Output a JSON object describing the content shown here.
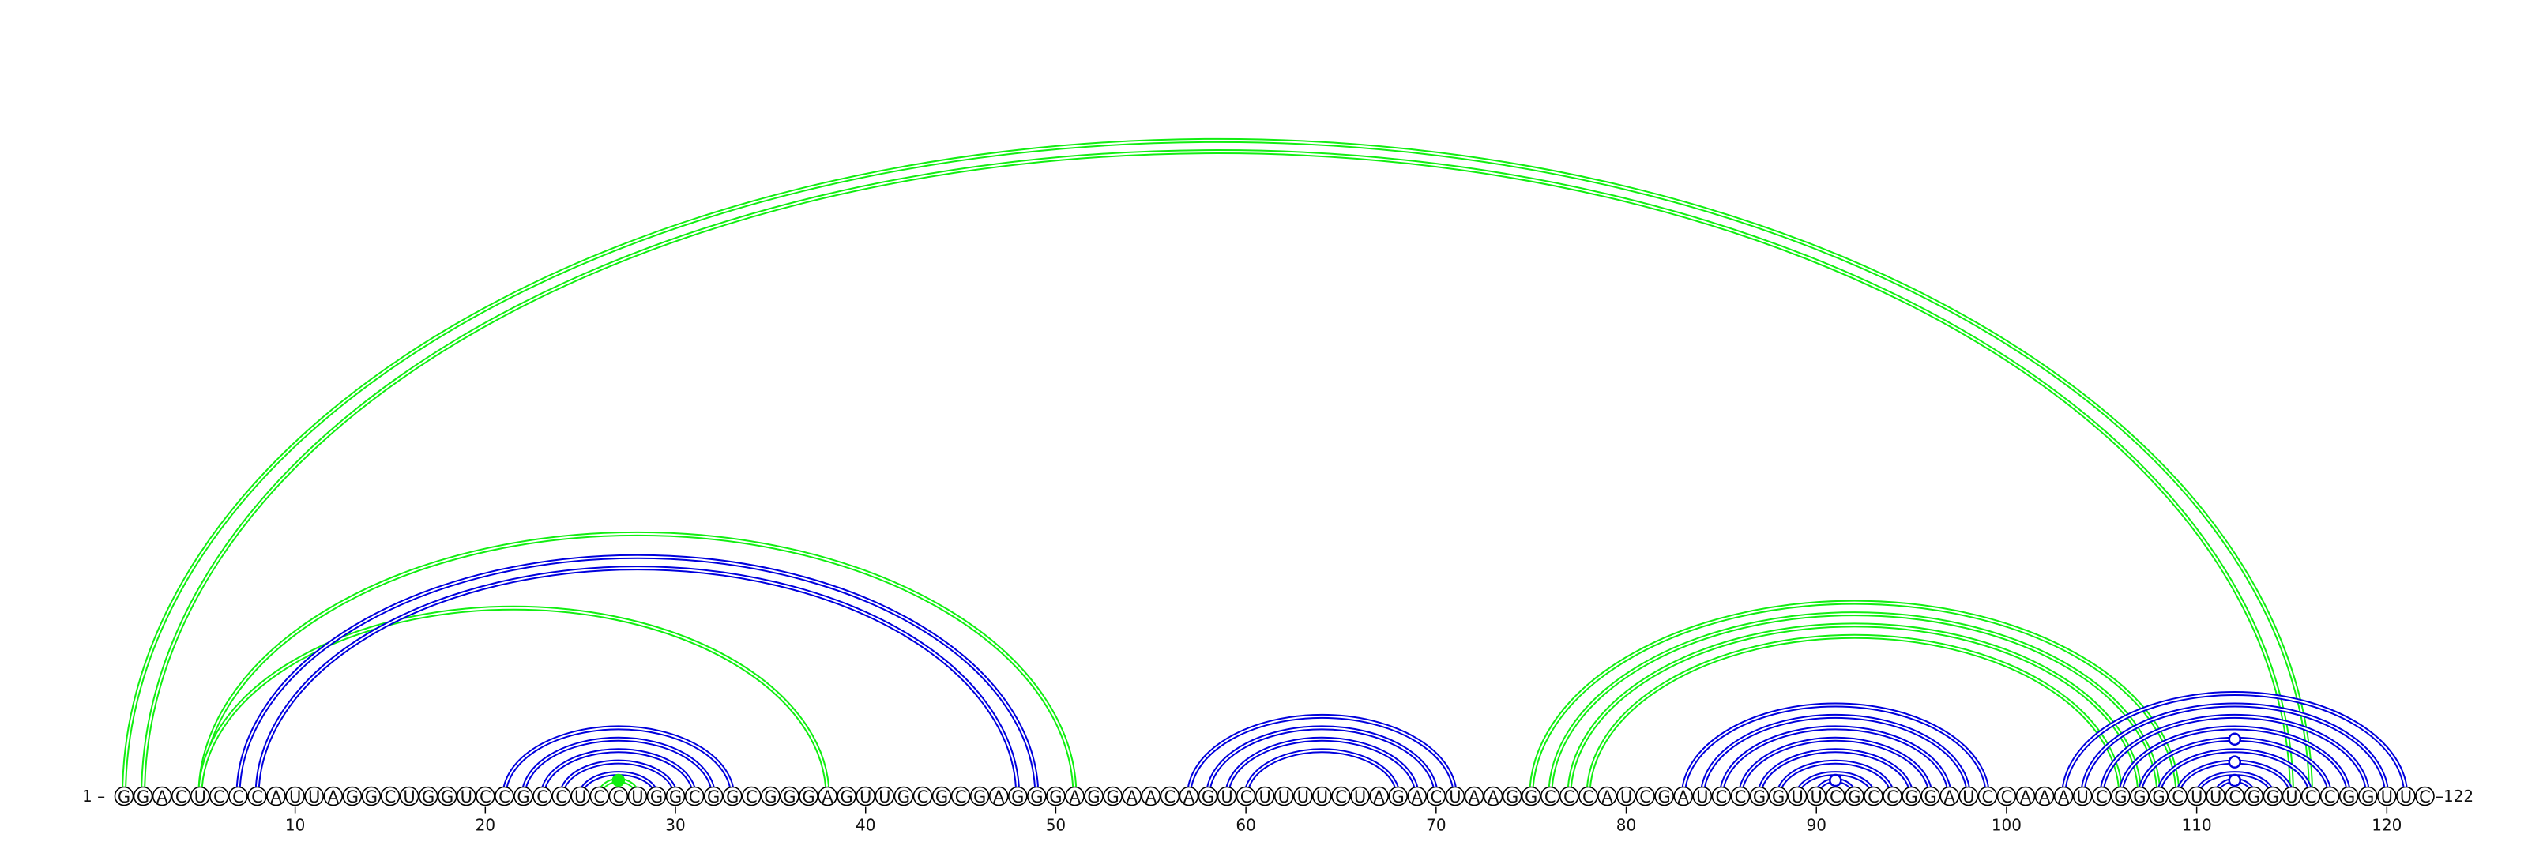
{
  "sequence": "GGACUCCCAUUAGGCUGGUCCGCCUCCUGGCGGCGGGAGUUGCGCGAGGGAGGAACAGUCUUUUCUAGACUAAGGCCCAUCGAUCCGGUUCGCCGGAUCCAAAUCGGGCUUCGGUCCGGUUC",
  "start_label": "1 –",
  "end_label": "–122",
  "ticks": [
    10,
    20,
    30,
    40,
    50,
    60,
    70,
    80,
    90,
    100,
    110,
    120
  ],
  "colors": {
    "blue": "#0000dd",
    "green": "#11ee11",
    "outline": "#000000"
  },
  "arcs": [
    {
      "i": 1,
      "j": 116,
      "color": "green"
    },
    {
      "i": 2,
      "j": 115,
      "color": "green"
    },
    {
      "i": 5,
      "j": 51,
      "color": "green"
    },
    {
      "i": 5,
      "j": 38,
      "color": "green"
    },
    {
      "i": 7,
      "j": 49,
      "color": "blue"
    },
    {
      "i": 8,
      "j": 48,
      "color": "blue"
    },
    {
      "i": 21,
      "j": 33,
      "color": "blue"
    },
    {
      "i": 22,
      "j": 32,
      "color": "blue"
    },
    {
      "i": 23,
      "j": 31,
      "color": "blue"
    },
    {
      "i": 24,
      "j": 30,
      "color": "blue"
    },
    {
      "i": 25,
      "j": 29,
      "color": "blue"
    },
    {
      "i": 26,
      "j": 28,
      "color": "green"
    },
    {
      "i": 57,
      "j": 71,
      "color": "blue"
    },
    {
      "i": 58,
      "j": 70,
      "color": "blue"
    },
    {
      "i": 59,
      "j": 69,
      "color": "blue"
    },
    {
      "i": 60,
      "j": 68,
      "color": "blue"
    },
    {
      "i": 75,
      "j": 109,
      "color": "green"
    },
    {
      "i": 76,
      "j": 108,
      "color": "green"
    },
    {
      "i": 77,
      "j": 107,
      "color": "green"
    },
    {
      "i": 78,
      "j": 106,
      "color": "green"
    },
    {
      "i": 83,
      "j": 99,
      "color": "blue"
    },
    {
      "i": 84,
      "j": 98,
      "color": "blue"
    },
    {
      "i": 85,
      "j": 97,
      "color": "blue"
    },
    {
      "i": 86,
      "j": 96,
      "color": "blue"
    },
    {
      "i": 87,
      "j": 95,
      "color": "blue"
    },
    {
      "i": 88,
      "j": 94,
      "color": "blue"
    },
    {
      "i": 89,
      "j": 93,
      "color": "blue"
    },
    {
      "i": 90,
      "j": 92,
      "color": "blue"
    },
    {
      "i": 103,
      "j": 121,
      "color": "blue"
    },
    {
      "i": 104,
      "j": 120,
      "color": "blue"
    },
    {
      "i": 105,
      "j": 119,
      "color": "blue"
    },
    {
      "i": 106,
      "j": 118,
      "color": "blue"
    },
    {
      "i": 107,
      "j": 117,
      "color": "blue"
    },
    {
      "i": 108,
      "j": 116,
      "color": "blue"
    },
    {
      "i": 109,
      "j": 115,
      "color": "blue"
    },
    {
      "i": 110,
      "j": 114,
      "color": "blue"
    },
    {
      "i": 111,
      "j": 113,
      "color": "blue"
    }
  ],
  "markers": [
    {
      "i": 26,
      "j": 28,
      "color": "green",
      "filled": true
    },
    {
      "i": 90,
      "j": 92,
      "color": "blue",
      "filled": false
    },
    {
      "i": 111,
      "j": 113,
      "color": "blue",
      "filled": false
    },
    {
      "i": 109,
      "j": 115,
      "color": "blue",
      "filled": false
    },
    {
      "i": 107,
      "j": 117,
      "color": "blue",
      "filled": false
    }
  ]
}
